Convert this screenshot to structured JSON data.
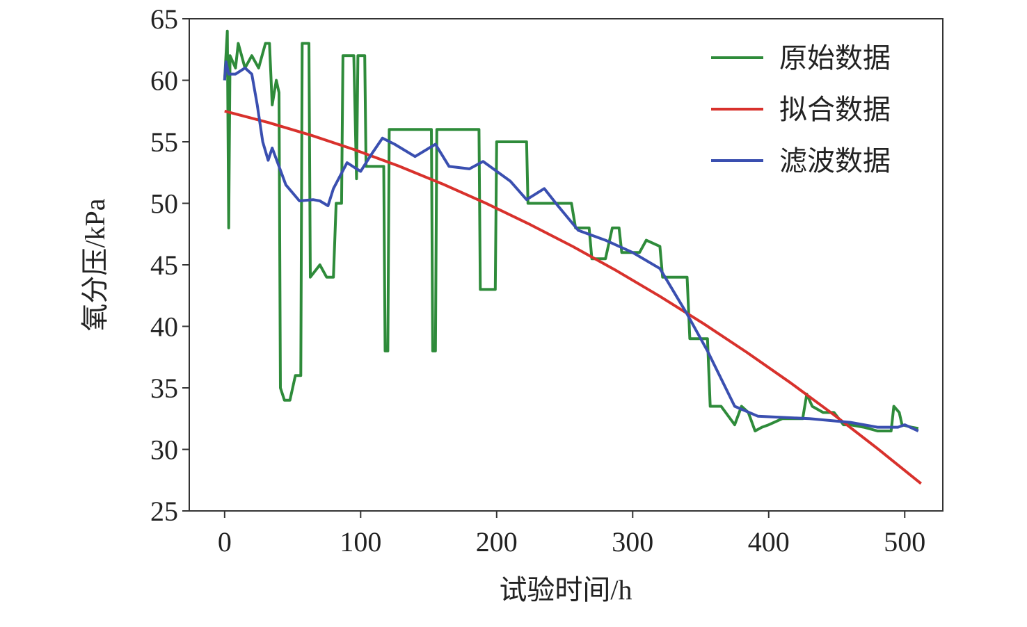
{
  "chart_data": {
    "type": "line",
    "xlabel": "试验时间/h",
    "ylabel": "氧分压/kPa",
    "xlim": [
      -26,
      528
    ],
    "ylim": [
      25,
      65
    ],
    "xticks": [
      0,
      100,
      200,
      300,
      400,
      500
    ],
    "yticks": [
      25,
      30,
      35,
      40,
      45,
      50,
      55,
      60,
      65
    ],
    "legend": "upper right",
    "series": [
      {
        "name": "原始数据",
        "color": "#2e8b3a",
        "x": [
          0,
          2,
          3,
          4,
          8,
          10,
          15,
          20,
          25,
          30,
          33,
          35,
          38,
          40,
          41,
          44,
          48,
          50,
          52,
          56,
          57,
          62,
          63,
          70,
          75,
          80,
          82,
          86,
          87,
          95,
          97,
          98,
          103,
          104,
          110,
          115,
          117,
          118,
          120,
          121,
          130,
          150,
          152,
          153,
          155,
          156,
          185,
          187,
          188,
          195,
          199,
          200,
          222,
          223,
          240,
          255,
          258,
          268,
          270,
          280,
          285,
          290,
          292,
          305,
          310,
          320,
          322,
          328,
          340,
          342,
          355,
          357,
          365,
          375,
          380,
          385,
          390,
          395,
          400,
          410,
          420,
          425,
          428,
          432,
          440,
          448,
          455,
          460,
          470,
          480,
          490,
          492,
          496,
          498,
          505,
          510
        ],
        "values": [
          60,
          64,
          48,
          62,
          61,
          63,
          61,
          62,
          61,
          63,
          63,
          58,
          60,
          59,
          35,
          34,
          34,
          35,
          36,
          36,
          63,
          63,
          44,
          45,
          44,
          44,
          50,
          50,
          62,
          62,
          52,
          62,
          62,
          53,
          53,
          53,
          53,
          38,
          38,
          56,
          56,
          56,
          56,
          38,
          38,
          56,
          56,
          56,
          43,
          43,
          43,
          55,
          55,
          50,
          50,
          50,
          48,
          48,
          45.5,
          45.5,
          48,
          48,
          46,
          46,
          47,
          46.5,
          44,
          44,
          44,
          39,
          39,
          33.5,
          33.5,
          32,
          33.5,
          33,
          31.5,
          31.8,
          32,
          32.5,
          32.5,
          32.5,
          34.5,
          33.5,
          33,
          33,
          32,
          32,
          31.8,
          31.5,
          31.5,
          33.5,
          33,
          32,
          31.8,
          31.7
        ]
      },
      {
        "name": "拟合数据",
        "color": "#d8312c",
        "x": [
          0,
          32,
          64,
          96,
          128,
          160,
          192,
          224,
          256,
          288,
          320,
          352,
          384,
          416,
          448,
          480,
          512
        ],
        "values": [
          57.5,
          56.57,
          55.52,
          54.34,
          53.03,
          51.58,
          50.01,
          48.31,
          46.49,
          44.53,
          42.44,
          40.23,
          37.88,
          35.41,
          32.81,
          30.07,
          27.22
        ]
      },
      {
        "name": "滤波数据",
        "color": "#3a4fb0",
        "x": [
          0,
          1,
          3,
          8,
          15,
          20,
          24,
          28,
          32,
          35,
          45,
          55,
          65,
          70,
          76,
          80,
          90,
          100,
          108,
          116,
          125,
          140,
          155,
          165,
          180,
          190,
          210,
          222,
          235,
          245,
          260,
          280,
          300,
          320,
          340,
          355,
          375,
          392,
          430,
          460,
          480,
          495,
          500,
          510
        ],
        "values": [
          60,
          61.5,
          60.5,
          60.5,
          61,
          60.5,
          58,
          55,
          53.5,
          54.5,
          51.5,
          50.2,
          50.3,
          50.2,
          49.8,
          51.2,
          53.3,
          52.6,
          54,
          55.3,
          54.8,
          53.8,
          54.8,
          53,
          52.8,
          53.4,
          51.8,
          50.3,
          51.2,
          49.8,
          47.8,
          47,
          46,
          44.7,
          41,
          38,
          33.5,
          32.7,
          32.5,
          32.2,
          31.8,
          31.8,
          32,
          31.5
        ]
      }
    ]
  }
}
